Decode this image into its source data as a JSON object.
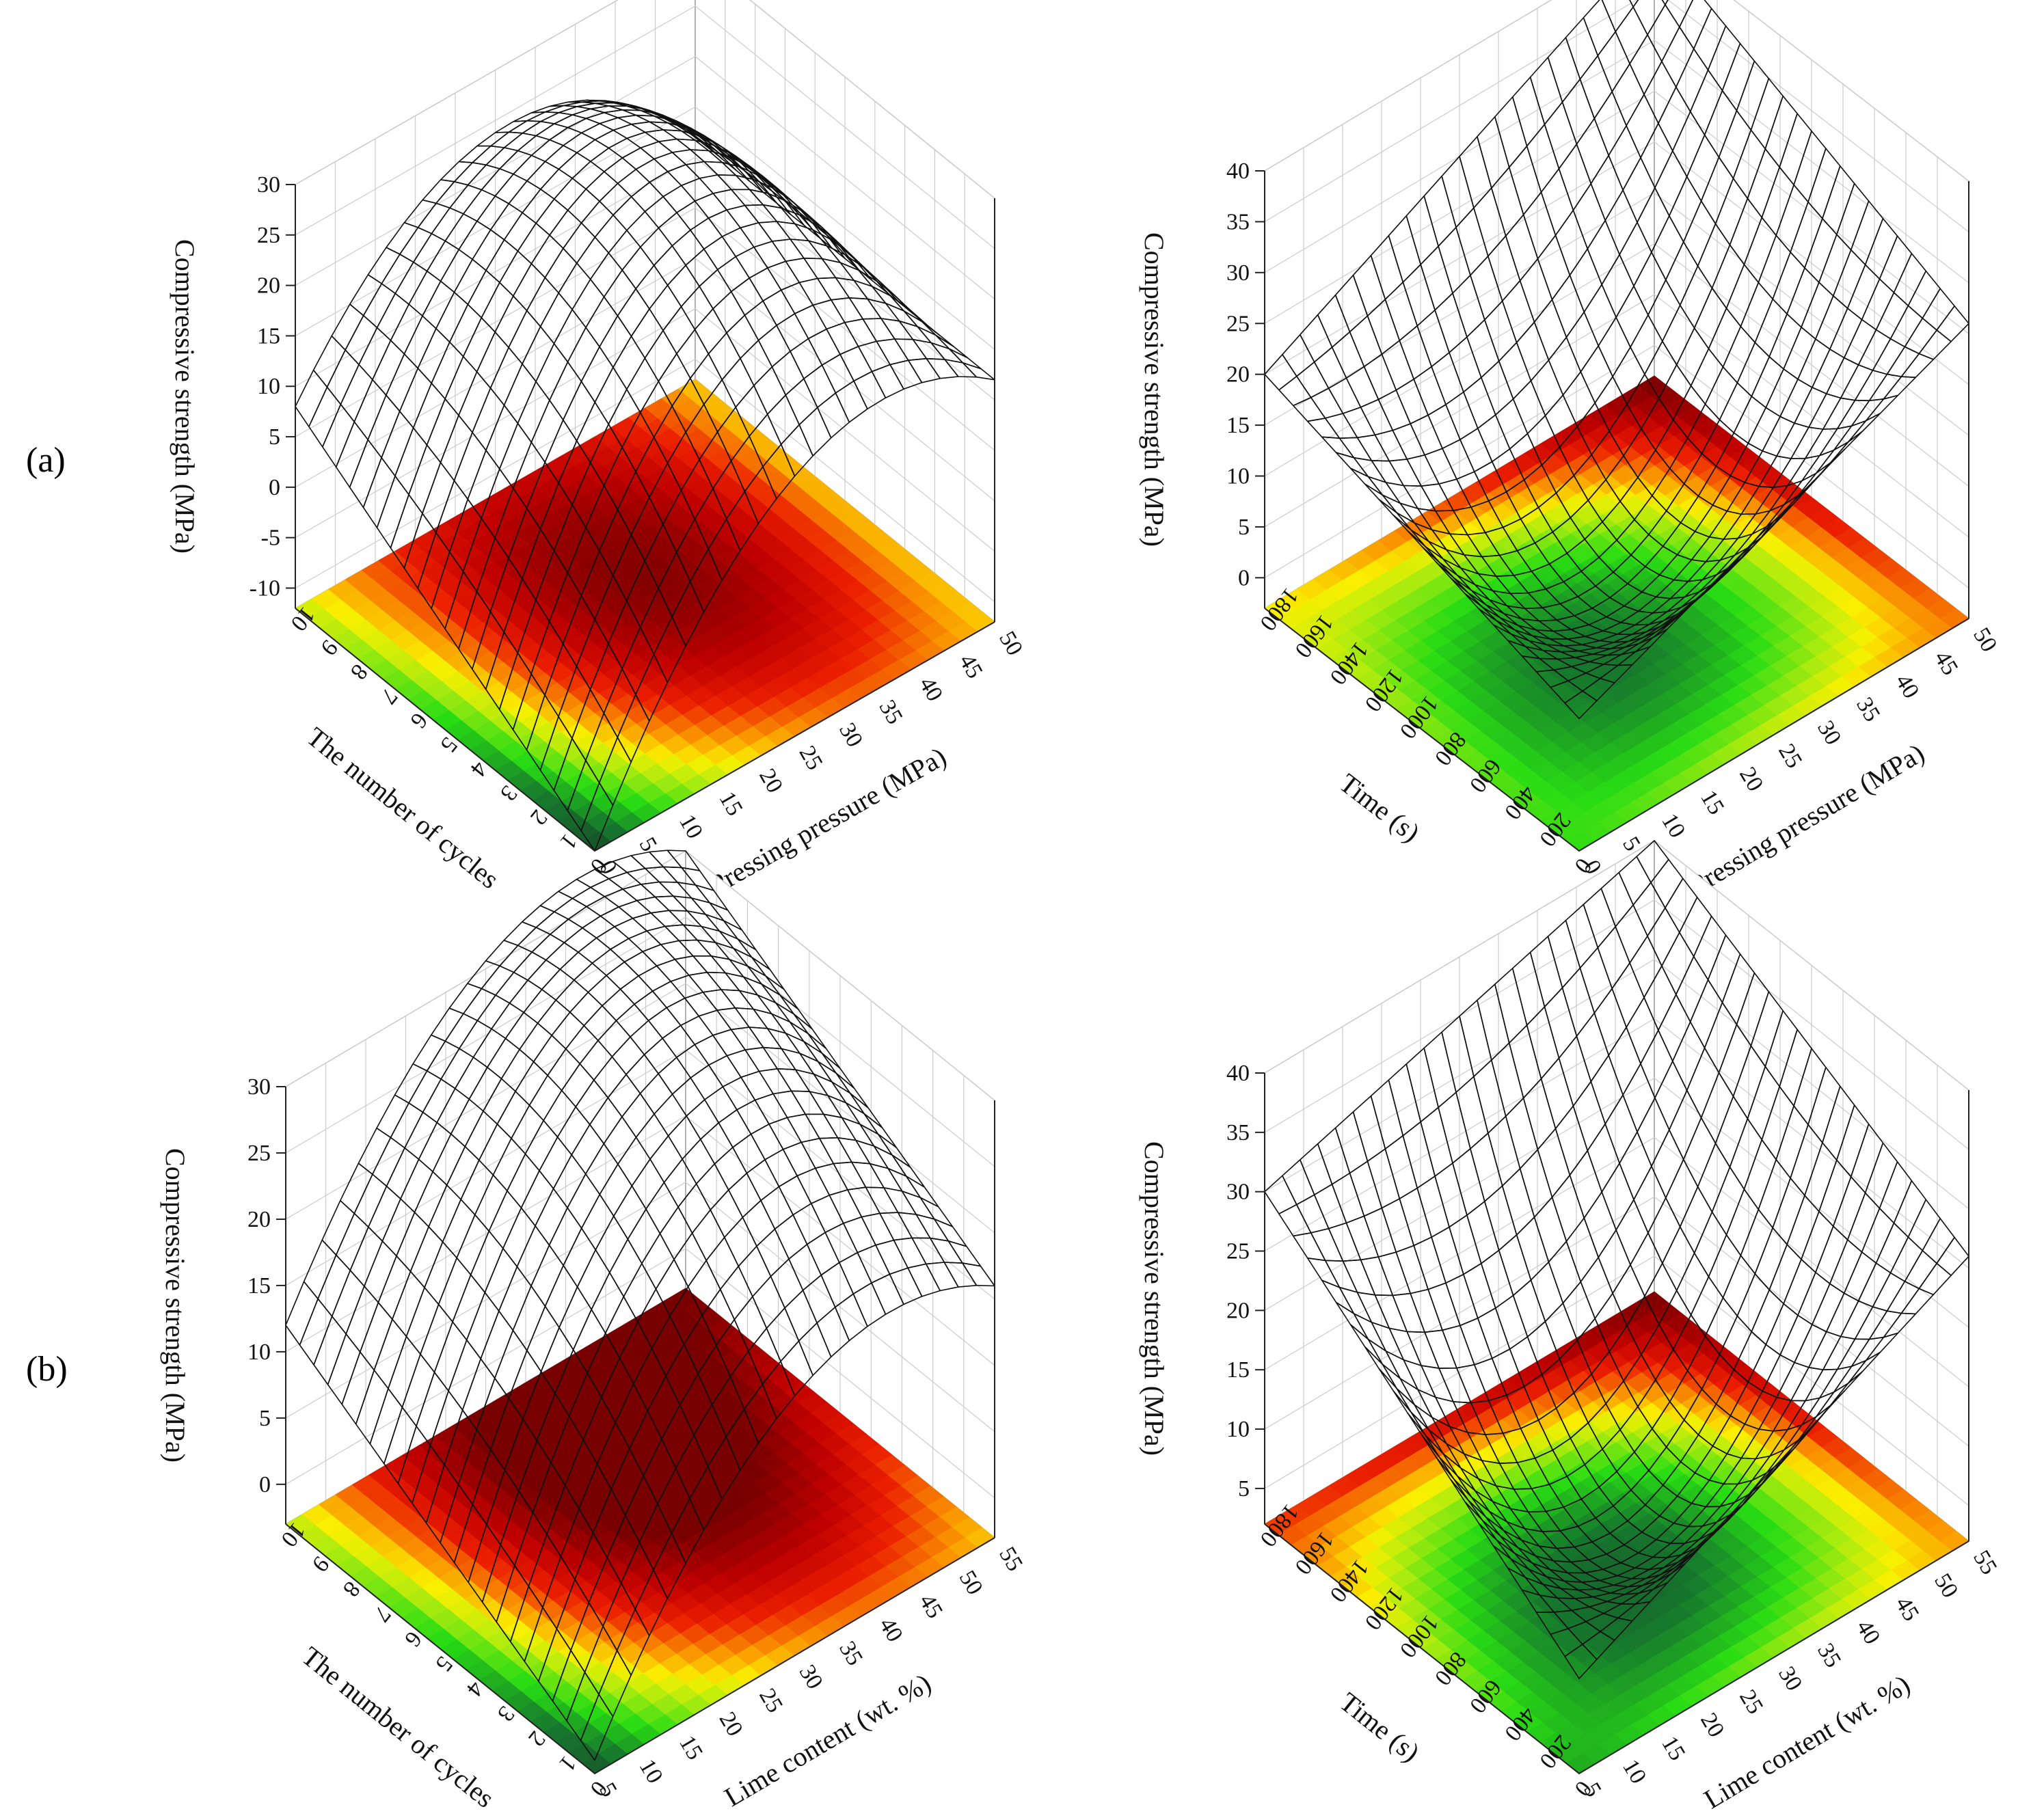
{
  "labels": {
    "a": "(a)",
    "b": "(b)"
  },
  "chart_data": [
    {
      "type": "surface",
      "zlabel": "Compressive strength  (MPa)",
      "ylabel": "The number of cycles",
      "xlabel": "Pressing pressure  (MPa)",
      "xticks": [
        "0",
        "5",
        "10",
        "15",
        "20",
        "25",
        "30",
        "35",
        "40",
        "45",
        "50"
      ],
      "yticks": [
        "0",
        "1",
        "2",
        "3",
        "4",
        "5",
        "6",
        "7",
        "8",
        "9",
        "10"
      ],
      "zticks": [
        "-10",
        "-5",
        "0",
        "5",
        "10",
        "15",
        "20",
        "25",
        "30"
      ],
      "xlim": [
        0,
        50
      ],
      "ylim": [
        0,
        10
      ],
      "zlim": [
        -12,
        30
      ],
      "corners": {
        "x0_y0": -12,
        "x1_y0": 12,
        "x0_y1": 8,
        "x1_y1": 12,
        "peak": 28
      },
      "colormap": "dark green - green - yellow - red - dark red"
    },
    {
      "type": "surface",
      "zlabel": "Compressive strength  (MPa)",
      "ylabel": "Time (s)",
      "xlabel": "Pressing pressure  (MPa)",
      "xticks": [
        "0",
        "5",
        "10",
        "15",
        "20",
        "25",
        "30",
        "35",
        "40",
        "45",
        "50"
      ],
      "yticks": [
        "0",
        "200",
        "400",
        "600",
        "800",
        "1000",
        "1200",
        "1400",
        "1600",
        "1800"
      ],
      "zticks": [
        "0",
        "5",
        "10",
        "15",
        "20",
        "25",
        "30",
        "35",
        "40"
      ],
      "xlim": [
        0,
        50
      ],
      "ylim": [
        0,
        1800
      ],
      "zlim": [
        -3,
        40
      ],
      "corners": {
        "x0_y0": 10,
        "x1_y0": 26,
        "x0_y1": 20,
        "x1_y1": 40,
        "min": 2
      },
      "colormap": "dark green - green - yellow - red - dark red"
    },
    {
      "type": "surface",
      "zlabel": "Compressive strength  (MPa)",
      "ylabel": "The number of cycles",
      "xlabel": "Lime content (wt. %)",
      "xticks": [
        "5",
        "10",
        "15",
        "20",
        "25",
        "30",
        "35",
        "40",
        "45",
        "50",
        "55"
      ],
      "yticks": [
        "0",
        "1",
        "2",
        "3",
        "4",
        "5",
        "6",
        "7",
        "8",
        "9",
        "10"
      ],
      "zticks": [
        "0",
        "5",
        "10",
        "15",
        "20",
        "25",
        "30"
      ],
      "xlim": [
        5,
        55
      ],
      "ylim": [
        0,
        10
      ],
      "zlim": [
        -3,
        30
      ],
      "corners": {
        "x0_y0": -2,
        "x1_y0": 16,
        "x0_y1": 12,
        "x1_y1": 30,
        "peak": 30
      },
      "colormap": "dark green - green - yellow - red - dark red"
    },
    {
      "type": "surface",
      "zlabel": "Compressive strength  (MPa)",
      "ylabel": "Time (s)",
      "xlabel": "Lime content (wt. %)",
      "xticks": [
        "5",
        "10",
        "15",
        "20",
        "25",
        "30",
        "35",
        "40",
        "45",
        "50",
        "55"
      ],
      "yticks": [
        "0",
        "200",
        "400",
        "600",
        "800",
        "1000",
        "1200",
        "1400",
        "1600",
        "1800"
      ],
      "zticks": [
        "5",
        "10",
        "15",
        "20",
        "25",
        "30",
        "35",
        "40"
      ],
      "xlim": [
        5,
        55
      ],
      "ylim": [
        0,
        1800
      ],
      "zlim": [
        2,
        40
      ],
      "corners": {
        "x0_y0": 10,
        "x1_y0": 26,
        "x0_y1": 30,
        "x1_y1": 40,
        "min": 5
      },
      "colormap": "dark green - green - yellow - red - dark red"
    }
  ]
}
